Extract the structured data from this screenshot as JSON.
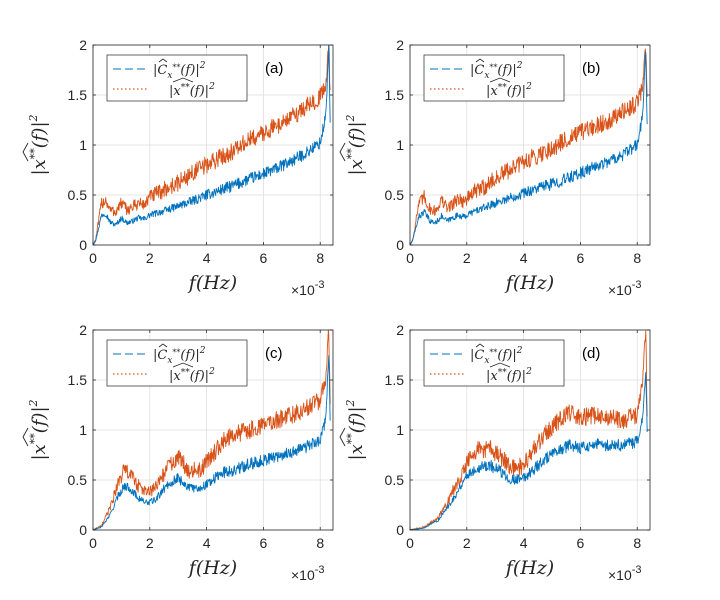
{
  "figure": {
    "series_colors": {
      "blue": "#0072BD",
      "orange": "#D95319"
    }
  },
  "chart_data": [
    {
      "type": "line",
      "panel_label": "(a)",
      "xlabel": "f(Hz)",
      "ylabel": "|x**(f)|^2",
      "x_multiplier": "×10^-3",
      "xlim": [
        0,
        8.45
      ],
      "ylim": [
        0,
        2
      ],
      "xticks": [
        "0",
        "2",
        "4",
        "6",
        "8"
      ],
      "yticks": [
        "0",
        "0.5",
        "1",
        "1.5",
        "2"
      ],
      "grid": true,
      "legend": [
        "|Ĉ_x**(f)|²",
        "|x**(f)|²"
      ],
      "legend_position": "top-left",
      "series": [
        {
          "name": "|Ĉ_x**(f)|²",
          "color": "#0072BD",
          "style": "dashed",
          "x": [
            0,
            0.1,
            0.3,
            0.45,
            0.6,
            0.8,
            1.0,
            1.2,
            1.4,
            1.6,
            1.8,
            2.0,
            2.5,
            3.0,
            3.5,
            4.0,
            4.5,
            5.0,
            5.5,
            6.0,
            6.5,
            7.0,
            7.5,
            8.0,
            8.2,
            8.3,
            8.35
          ],
          "values": [
            0,
            0.05,
            0.3,
            0.32,
            0.23,
            0.2,
            0.27,
            0.22,
            0.24,
            0.27,
            0.26,
            0.3,
            0.34,
            0.39,
            0.44,
            0.5,
            0.55,
            0.6,
            0.66,
            0.71,
            0.77,
            0.84,
            0.92,
            1.02,
            1.3,
            2.0,
            1.2
          ]
        },
        {
          "name": "|x**(f)|²",
          "color": "#D95319",
          "style": "dotted",
          "x": [
            0,
            0.1,
            0.3,
            0.45,
            0.6,
            0.8,
            1.0,
            1.2,
            1.4,
            1.6,
            1.8,
            2.0,
            2.5,
            3.0,
            3.5,
            4.0,
            4.5,
            5.0,
            5.5,
            6.0,
            6.5,
            7.0,
            7.5,
            8.0,
            8.2,
            8.3,
            8.35
          ],
          "values": [
            0,
            0.06,
            0.42,
            0.45,
            0.35,
            0.33,
            0.42,
            0.35,
            0.38,
            0.42,
            0.4,
            0.48,
            0.55,
            0.62,
            0.72,
            0.8,
            0.88,
            0.95,
            1.05,
            1.12,
            1.2,
            1.28,
            1.38,
            1.48,
            1.6,
            2.0,
            1.55
          ]
        }
      ]
    },
    {
      "type": "line",
      "panel_label": "(b)",
      "xlabel": "f(Hz)",
      "ylabel": "|x**(f)|^2",
      "x_multiplier": "×10^-3",
      "xlim": [
        0,
        8.45
      ],
      "ylim": [
        0,
        2
      ],
      "xticks": [
        "0",
        "2",
        "4",
        "6",
        "8"
      ],
      "yticks": [
        "0",
        "0.5",
        "1",
        "1.5",
        "2"
      ],
      "grid": true,
      "legend": [
        "|Ĉ_x**(f)|²",
        "|x**(f)|²"
      ],
      "legend_position": "top-left",
      "series": [
        {
          "name": "|Ĉ_x**(f)|²",
          "color": "#0072BD",
          "style": "dashed",
          "x": [
            0,
            0.1,
            0.3,
            0.5,
            0.7,
            0.9,
            1.1,
            1.3,
            1.5,
            1.7,
            1.9,
            2.2,
            2.6,
            3.0,
            3.5,
            4.0,
            4.5,
            5.0,
            5.5,
            6.0,
            6.5,
            7.0,
            7.5,
            8.0,
            8.2,
            8.3,
            8.35
          ],
          "values": [
            0,
            0.05,
            0.28,
            0.33,
            0.24,
            0.22,
            0.29,
            0.24,
            0.27,
            0.3,
            0.28,
            0.33,
            0.37,
            0.42,
            0.47,
            0.52,
            0.57,
            0.61,
            0.66,
            0.72,
            0.78,
            0.84,
            0.9,
            1.0,
            1.3,
            2.0,
            1.2
          ]
        },
        {
          "name": "|x**(f)|²",
          "color": "#D95319",
          "style": "dotted",
          "x": [
            0,
            0.1,
            0.3,
            0.5,
            0.7,
            0.9,
            1.1,
            1.3,
            1.5,
            1.7,
            1.9,
            2.2,
            2.6,
            3.0,
            3.5,
            4.0,
            4.5,
            5.0,
            5.5,
            6.0,
            6.5,
            7.0,
            7.5,
            8.0,
            8.2,
            8.3,
            8.35
          ],
          "values": [
            0,
            0.06,
            0.4,
            0.48,
            0.36,
            0.34,
            0.45,
            0.37,
            0.41,
            0.47,
            0.43,
            0.52,
            0.58,
            0.66,
            0.75,
            0.83,
            0.9,
            0.97,
            1.05,
            1.12,
            1.18,
            1.25,
            1.33,
            1.42,
            1.6,
            2.0,
            1.5
          ]
        }
      ]
    },
    {
      "type": "line",
      "panel_label": "(c)",
      "xlabel": "f(Hz)",
      "ylabel": "|x**(f)|^2",
      "x_multiplier": "×10^-3",
      "xlim": [
        0,
        8.45
      ],
      "ylim": [
        0,
        2
      ],
      "xticks": [
        "0",
        "2",
        "4",
        "6",
        "8"
      ],
      "yticks": [
        "0",
        "0.5",
        "1",
        "1.5",
        "2"
      ],
      "grid": true,
      "legend": [
        "|Ĉ_x**(f)|²",
        "|x**(f)|²"
      ],
      "legend_position": "top-left",
      "series": [
        {
          "name": "|Ĉ_x**(f)|²",
          "color": "#0072BD",
          "style": "dashed",
          "x": [
            0,
            0.3,
            0.6,
            0.9,
            1.1,
            1.3,
            1.6,
            1.9,
            2.2,
            2.6,
            3.0,
            3.4,
            3.8,
            4.2,
            4.6,
            5.0,
            5.5,
            6.0,
            6.5,
            7.0,
            7.5,
            8.0,
            8.2,
            8.3,
            8.35
          ],
          "values": [
            0,
            0.03,
            0.15,
            0.35,
            0.44,
            0.42,
            0.32,
            0.27,
            0.3,
            0.45,
            0.52,
            0.42,
            0.42,
            0.5,
            0.58,
            0.6,
            0.66,
            0.7,
            0.74,
            0.78,
            0.83,
            0.9,
            1.1,
            1.8,
            1.1
          ]
        },
        {
          "name": "|x**(f)|²",
          "color": "#D95319",
          "style": "dotted",
          "x": [
            0,
            0.3,
            0.6,
            0.9,
            1.1,
            1.3,
            1.6,
            1.9,
            2.2,
            2.6,
            3.0,
            3.4,
            3.8,
            4.2,
            4.6,
            5.0,
            5.5,
            6.0,
            6.5,
            7.0,
            7.5,
            8.0,
            8.2,
            8.3,
            8.35
          ],
          "values": [
            0,
            0.04,
            0.22,
            0.48,
            0.6,
            0.56,
            0.44,
            0.37,
            0.42,
            0.62,
            0.72,
            0.6,
            0.6,
            0.75,
            0.9,
            0.95,
            1.0,
            1.05,
            1.1,
            1.15,
            1.22,
            1.3,
            1.5,
            2.0,
            1.3
          ]
        }
      ]
    },
    {
      "type": "line",
      "panel_label": "(d)",
      "xlabel": "f(Hz)",
      "ylabel": "|x**(f)|^2",
      "x_multiplier": "×10^-3",
      "xlim": [
        0,
        8.45
      ],
      "ylim": [
        0,
        2
      ],
      "xticks": [
        "0",
        "2",
        "4",
        "6",
        "8"
      ],
      "yticks": [
        "0",
        "0.5",
        "1",
        "1.5",
        "2"
      ],
      "grid": true,
      "legend": [
        "|Ĉ_x**(f)|²",
        "|x**(f)|²"
      ],
      "legend_position": "top-left",
      "series": [
        {
          "name": "|Ĉ_x**(f)|²",
          "color": "#0072BD",
          "style": "dashed",
          "x": [
            0,
            0.5,
            1.0,
            1.5,
            2.0,
            2.4,
            2.8,
            3.2,
            3.6,
            4.0,
            4.4,
            4.8,
            5.2,
            5.6,
            6.0,
            6.5,
            7.0,
            7.5,
            8.0,
            8.2,
            8.3,
            8.35
          ],
          "values": [
            0,
            0.02,
            0.1,
            0.3,
            0.55,
            0.63,
            0.65,
            0.58,
            0.5,
            0.52,
            0.62,
            0.72,
            0.78,
            0.85,
            0.82,
            0.86,
            0.84,
            0.85,
            0.88,
            1.1,
            1.6,
            1.0
          ]
        },
        {
          "name": "|x**(f)|²",
          "color": "#D95319",
          "style": "dotted",
          "x": [
            0,
            0.5,
            1.0,
            1.5,
            2.0,
            2.4,
            2.8,
            3.2,
            3.6,
            4.0,
            4.4,
            4.8,
            5.2,
            5.6,
            6.0,
            6.5,
            7.0,
            7.5,
            8.0,
            8.2,
            8.3,
            8.35
          ],
          "values": [
            0,
            0.03,
            0.12,
            0.38,
            0.68,
            0.8,
            0.82,
            0.72,
            0.62,
            0.64,
            0.82,
            0.98,
            1.08,
            1.18,
            1.12,
            1.15,
            1.12,
            1.1,
            1.15,
            1.5,
            2.0,
            1.2
          ]
        }
      ]
    }
  ]
}
